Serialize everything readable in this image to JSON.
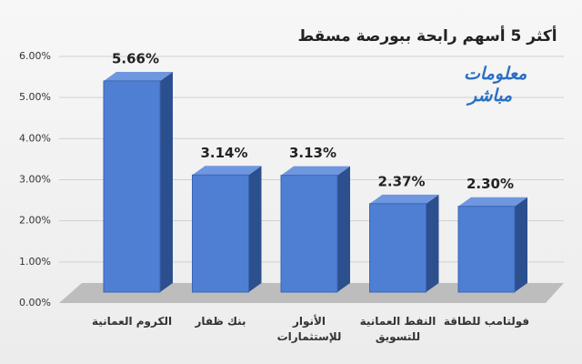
{
  "chart_data": {
    "type": "bar3d",
    "title": "أكثر 5 أسهم رابحة ببورصة مسقط",
    "logo": [
      "معلومات",
      "مباشر"
    ],
    "categories": [
      "الكروم العمانية",
      "بنك ظفار",
      "الأنوار للإستثمارات",
      "النفط العمانية للتسويق",
      "فولتامب للطاقة"
    ],
    "values": [
      5.66,
      3.14,
      3.13,
      2.37,
      2.3
    ],
    "value_labels": [
      "5.66%",
      "3.14%",
      "3.13%",
      "2.37%",
      "2.30%"
    ],
    "color": "#4f7fd3",
    "ylim": [
      0,
      6
    ],
    "yticks": [
      {
        "value": 0,
        "label": "0.00%"
      },
      {
        "value": 1,
        "label": "1.00%"
      },
      {
        "value": 2,
        "label": "2.00%"
      },
      {
        "value": 3,
        "label": "3.00%"
      },
      {
        "value": 4,
        "label": "4.00%"
      },
      {
        "value": 5,
        "label": "5.00%"
      },
      {
        "value": 6,
        "label": "6.00%"
      }
    ],
    "grid": true
  }
}
